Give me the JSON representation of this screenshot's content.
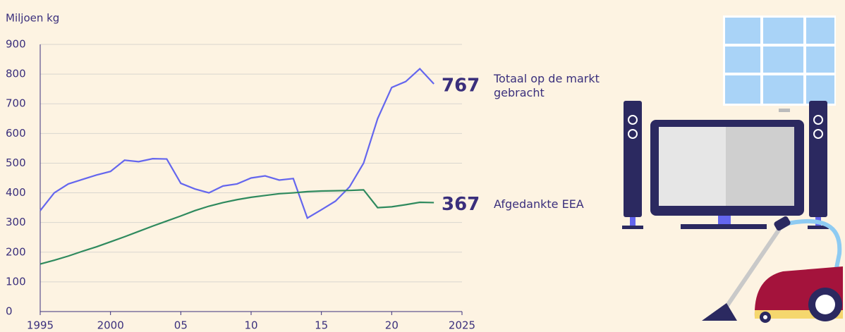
{
  "chart_data": {
    "type": "line",
    "y_axis_label": "Miljoen kg",
    "x": [
      1995,
      1996,
      1997,
      1998,
      1999,
      2000,
      2001,
      2002,
      2003,
      2004,
      2005,
      2006,
      2007,
      2008,
      2009,
      2010,
      2011,
      2012,
      2013,
      2014,
      2015,
      2016,
      2017,
      2018,
      2019,
      2020,
      2021,
      2022,
      2023
    ],
    "series": [
      {
        "name": "Totaal op de markt gebracht",
        "color": "#6466ee",
        "values": [
          340,
          400,
          430,
          445,
          460,
          472,
          510,
          505,
          515,
          514,
          432,
          413,
          400,
          423,
          430,
          450,
          457,
          443,
          448,
          315,
          343,
          372,
          420,
          500,
          650,
          755,
          775,
          818,
          767
        ]
      },
      {
        "name": "Afgedankte EEA",
        "color": "#2f8a5e",
        "values": [
          160,
          173,
          187,
          203,
          218,
          235,
          252,
          270,
          288,
          305,
          322,
          340,
          355,
          367,
          377,
          385,
          391,
          397,
          400,
          404,
          406,
          407,
          408,
          410,
          350,
          353,
          360,
          368,
          367
        ]
      }
    ],
    "xlim": [
      1995,
      2025
    ],
    "xticks": [
      1995,
      2000,
      {
        "value": 2005,
        "label": "05"
      },
      {
        "value": 2010,
        "label": "10"
      },
      {
        "value": 2015,
        "label": "15"
      },
      {
        "value": 2020,
        "label": "20"
      },
      2025
    ],
    "ylim": [
      0,
      900
    ],
    "yticks": [
      0,
      100,
      200,
      300,
      400,
      500,
      600,
      700,
      800,
      900
    ],
    "grid": true
  }
}
